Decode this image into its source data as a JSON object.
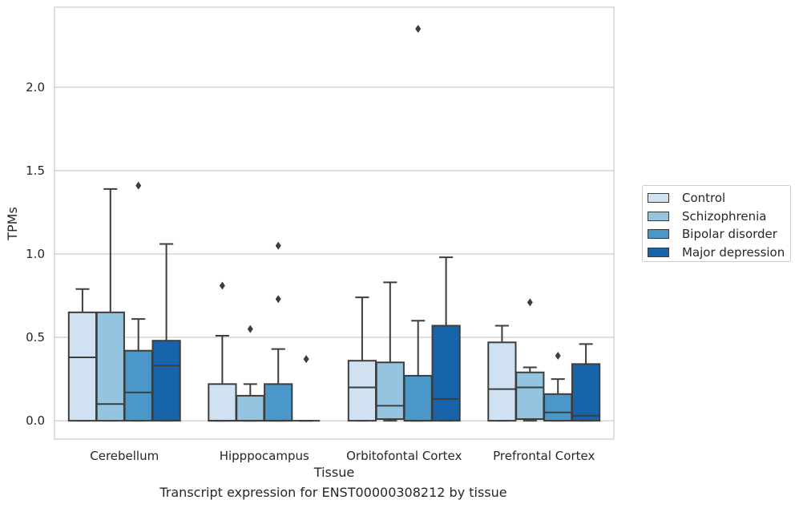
{
  "caption": "Transcript expression for ENST00000308212 by tissue",
  "chart_data": {
    "type": "box",
    "title": "",
    "xlabel": "Tissue",
    "ylabel": "TPMs",
    "ylim": [
      -0.11,
      2.48
    ],
    "yticks": [
      0.0,
      0.5,
      1.0,
      1.5,
      2.0
    ],
    "ytick_labels": [
      "0.0",
      "0.5",
      "1.0",
      "1.5",
      "2.0"
    ],
    "grid": "horizontal",
    "legend_position": "outside-right",
    "categories": [
      "Cerebellum",
      "Hipppocampus",
      "Orbitofontal Cortex",
      "Prefrontal Cortex"
    ],
    "series": [
      {
        "name": "Control",
        "color": "#d0e1f2",
        "boxes": [
          {
            "whislo": 0.0,
            "q1": 0.0,
            "med": 0.38,
            "q3": 0.65,
            "whishi": 0.79,
            "fliers": []
          },
          {
            "whislo": 0.0,
            "q1": 0.0,
            "med": 0.0,
            "q3": 0.22,
            "whishi": 0.51,
            "fliers": [
              0.81
            ]
          },
          {
            "whislo": 0.0,
            "q1": 0.0,
            "med": 0.2,
            "q3": 0.36,
            "whishi": 0.74,
            "fliers": []
          },
          {
            "whislo": 0.0,
            "q1": 0.0,
            "med": 0.19,
            "q3": 0.47,
            "whishi": 0.57,
            "fliers": []
          }
        ]
      },
      {
        "name": "Schizophrenia",
        "color": "#94c4df",
        "boxes": [
          {
            "whislo": 0.0,
            "q1": 0.0,
            "med": 0.1,
            "q3": 0.65,
            "whishi": 1.39,
            "fliers": []
          },
          {
            "whislo": 0.0,
            "q1": 0.0,
            "med": 0.0,
            "q3": 0.15,
            "whishi": 0.22,
            "fliers": [
              0.55
            ]
          },
          {
            "whislo": 0.0,
            "q1": 0.01,
            "med": 0.09,
            "q3": 0.35,
            "whishi": 0.83,
            "fliers": []
          },
          {
            "whislo": 0.0,
            "q1": 0.01,
            "med": 0.2,
            "q3": 0.29,
            "whishi": 0.32,
            "fliers": [
              0.71
            ]
          }
        ]
      },
      {
        "name": "Bipolar disorder",
        "color": "#4a98c9",
        "boxes": [
          {
            "whislo": 0.0,
            "q1": 0.0,
            "med": 0.17,
            "q3": 0.42,
            "whishi": 0.61,
            "fliers": [
              1.41
            ]
          },
          {
            "whislo": 0.0,
            "q1": 0.0,
            "med": 0.0,
            "q3": 0.22,
            "whishi": 0.43,
            "fliers": [
              0.73,
              1.05
            ]
          },
          {
            "whislo": 0.0,
            "q1": 0.0,
            "med": 0.0,
            "q3": 0.27,
            "whishi": 0.6,
            "fliers": [
              2.35
            ]
          },
          {
            "whislo": 0.0,
            "q1": 0.0,
            "med": 0.05,
            "q3": 0.16,
            "whishi": 0.25,
            "fliers": [
              0.39
            ]
          }
        ]
      },
      {
        "name": "Major depression",
        "color": "#1764ab",
        "boxes": [
          {
            "whislo": 0.0,
            "q1": 0.0,
            "med": 0.33,
            "q3": 0.48,
            "whishi": 1.06,
            "fliers": []
          },
          {
            "whislo": 0.0,
            "q1": 0.0,
            "med": 0.0,
            "q3": 0.0,
            "whishi": 0.0,
            "fliers": [
              0.37
            ]
          },
          {
            "whislo": 0.0,
            "q1": 0.0,
            "med": 0.13,
            "q3": 0.57,
            "whishi": 0.98,
            "fliers": []
          },
          {
            "whislo": 0.0,
            "q1": 0.0,
            "med": 0.03,
            "q3": 0.34,
            "whishi": 0.46,
            "fliers": []
          }
        ]
      }
    ]
  }
}
